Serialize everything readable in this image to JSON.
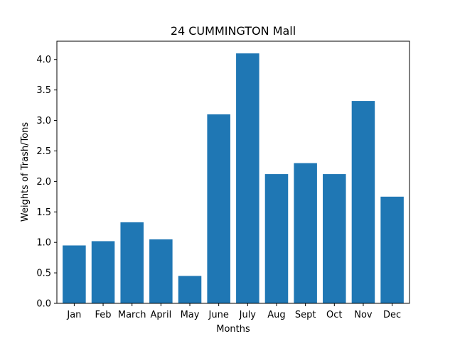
{
  "chart_data": {
    "type": "bar",
    "title": "24 CUMMINGTON Mall",
    "xlabel": "Months",
    "ylabel": "Weights of Trash/Tons",
    "categories": [
      "Jan",
      "Feb",
      "March",
      "April",
      "May",
      "June",
      "July",
      "Aug",
      "Sept",
      "Oct",
      "Nov",
      "Dec"
    ],
    "values": [
      0.95,
      1.02,
      1.33,
      1.05,
      0.45,
      3.1,
      4.1,
      2.12,
      2.3,
      2.12,
      3.32,
      1.75
    ],
    "ylim": [
      0,
      4.3
    ],
    "yticks": [
      "0.0",
      "0.5",
      "1.0",
      "1.5",
      "2.0",
      "2.5",
      "3.0",
      "3.5",
      "4.0"
    ],
    "bar_color": "#1f77b4",
    "grid": false,
    "legend": "none"
  }
}
